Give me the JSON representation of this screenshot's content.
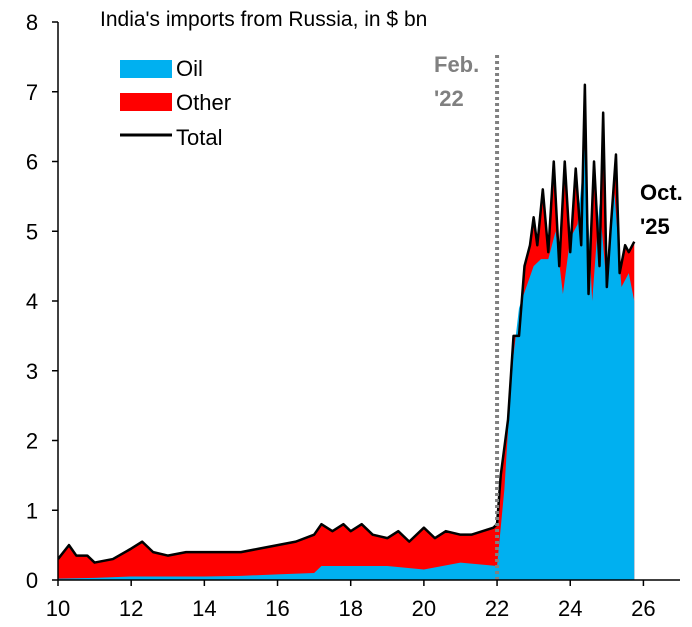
{
  "chart_data": {
    "type": "area",
    "title": "India's imports from Russia, in $ bn",
    "xlabel": "",
    "ylabel": "",
    "xlim": [
      10,
      27
    ],
    "ylim": [
      0,
      8
    ],
    "x_ticks": [
      10,
      12,
      14,
      16,
      18,
      20,
      22,
      24,
      26
    ],
    "y_ticks": [
      0,
      1,
      2,
      3,
      4,
      5,
      6,
      7,
      8
    ],
    "grid": false,
    "legend_position": "top-left",
    "colors": {
      "oil": "#00B0F0",
      "other": "#FF0000",
      "total": "#000000",
      "marker": "#808080"
    },
    "legend": [
      {
        "key": "oil",
        "label": "Oil"
      },
      {
        "key": "other",
        "label": "Other"
      },
      {
        "key": "total",
        "label": "Total"
      }
    ],
    "annotations": {
      "feb22_line1": "Feb.",
      "feb22_line2": "'22",
      "feb22_x": 22.0,
      "oct25_line1": "Oct.",
      "oct25_line2": "'25"
    },
    "series": [
      {
        "name": "Oil",
        "x": [
          10.0,
          11.0,
          12.0,
          13.0,
          14.0,
          15.0,
          16.0,
          17.0,
          17.2,
          18.0,
          19.0,
          20.0,
          21.0,
          22.0,
          22.2,
          22.4,
          22.6,
          22.8,
          23.0,
          23.2,
          23.4,
          23.6,
          23.8,
          24.0,
          24.2,
          24.4,
          24.6,
          24.8,
          25.0,
          25.2,
          25.4,
          25.6,
          25.75
        ],
        "values": [
          0.02,
          0.03,
          0.05,
          0.05,
          0.05,
          0.06,
          0.08,
          0.1,
          0.2,
          0.2,
          0.2,
          0.15,
          0.25,
          0.2,
          1.3,
          3.0,
          3.9,
          4.2,
          4.5,
          4.6,
          4.6,
          5.0,
          4.1,
          4.9,
          5.1,
          6.2,
          4.0,
          5.4,
          4.2,
          5.6,
          4.2,
          4.4,
          4.0
        ]
      },
      {
        "name": "Other",
        "x": [
          10.0,
          11.0,
          12.0,
          13.0,
          14.0,
          15.0,
          16.0,
          17.0,
          17.2,
          18.0,
          19.0,
          20.0,
          21.0,
          22.0,
          22.2,
          22.4,
          22.6,
          22.8,
          23.0,
          23.2,
          23.4,
          23.6,
          23.8,
          24.0,
          24.2,
          24.4,
          24.6,
          24.8,
          25.0,
          25.2,
          25.4,
          25.6,
          25.75
        ],
        "values": [
          0.25,
          0.25,
          0.4,
          0.3,
          0.35,
          0.35,
          0.4,
          0.55,
          0.5,
          0.5,
          0.4,
          0.55,
          0.4,
          0.65,
          0.5,
          0.5,
          0.6,
          0.6,
          0.5,
          0.6,
          0.5,
          0.6,
          0.4,
          0.5,
          0.45,
          0.9,
          0.5,
          0.9,
          0.4,
          0.6,
          0.4,
          0.45,
          0.7
        ]
      },
      {
        "name": "Total",
        "x": [
          10.0,
          10.3,
          10.5,
          10.8,
          11.0,
          11.5,
          12.0,
          12.3,
          12.6,
          13.0,
          13.5,
          14.0,
          14.5,
          15.0,
          15.5,
          16.0,
          16.5,
          17.0,
          17.2,
          17.5,
          17.8,
          18.0,
          18.3,
          18.6,
          19.0,
          19.3,
          19.6,
          20.0,
          20.3,
          20.6,
          21.0,
          21.3,
          21.6,
          21.9,
          22.0,
          22.1,
          22.3,
          22.45,
          22.6,
          22.75,
          22.9,
          23.0,
          23.1,
          23.25,
          23.4,
          23.55,
          23.7,
          23.85,
          24.0,
          24.15,
          24.3,
          24.4,
          24.5,
          24.65,
          24.8,
          24.9,
          25.0,
          25.1,
          25.25,
          25.35,
          25.5,
          25.6,
          25.75
        ],
        "values": [
          0.3,
          0.5,
          0.35,
          0.35,
          0.25,
          0.3,
          0.45,
          0.55,
          0.4,
          0.35,
          0.4,
          0.4,
          0.4,
          0.4,
          0.45,
          0.5,
          0.55,
          0.65,
          0.8,
          0.7,
          0.8,
          0.7,
          0.8,
          0.65,
          0.6,
          0.7,
          0.55,
          0.75,
          0.6,
          0.7,
          0.65,
          0.65,
          0.7,
          0.75,
          0.8,
          1.5,
          2.3,
          3.5,
          3.5,
          4.5,
          4.8,
          5.2,
          4.8,
          5.6,
          4.7,
          6.0,
          4.5,
          6.0,
          4.7,
          5.9,
          4.8,
          7.1,
          4.1,
          6.0,
          4.5,
          6.7,
          4.2,
          5.0,
          6.1,
          4.4,
          4.8,
          4.7,
          4.85
        ]
      }
    ]
  }
}
